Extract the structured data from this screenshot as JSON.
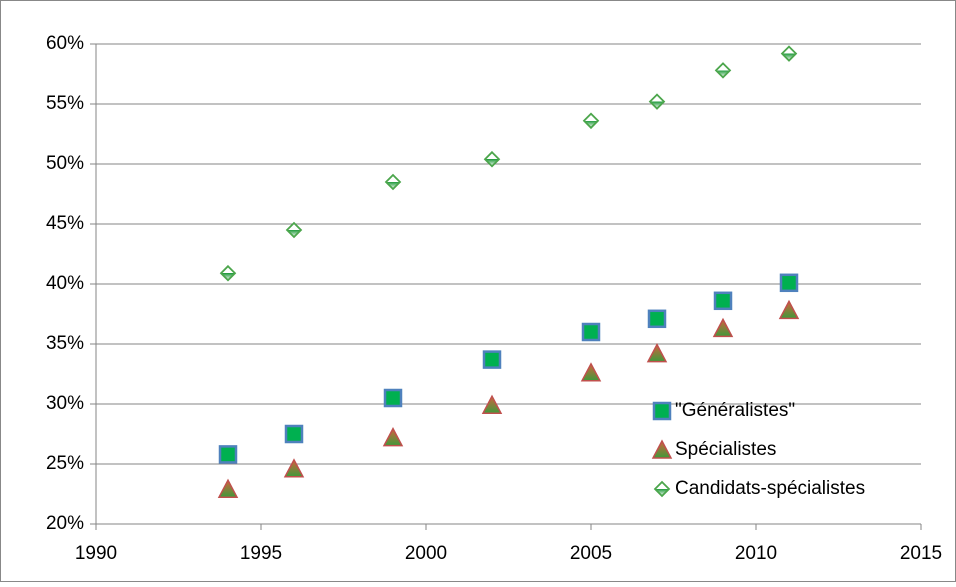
{
  "chart_data": {
    "type": "scatter",
    "x": [
      1994,
      1996,
      1999,
      2002,
      2005,
      2007,
      2009,
      2011
    ],
    "series": [
      {
        "name": "\"Généralistes\"",
        "color": "#00b050",
        "marker": "square",
        "values": [
          25.8,
          27.5,
          30.5,
          33.7,
          36.0,
          37.1,
          38.6,
          40.1
        ]
      },
      {
        "name": "Spécialistes",
        "color": "#c0504d",
        "marker": "triangle",
        "values": [
          22.9,
          24.6,
          27.2,
          29.9,
          32.6,
          34.2,
          36.3,
          37.8
        ]
      },
      {
        "name": "Candidats-spécialistes",
        "color": "#9bbb59",
        "marker": "diamond",
        "values": [
          40.9,
          44.5,
          48.5,
          50.4,
          53.6,
          55.2,
          57.8,
          59.2
        ]
      }
    ],
    "xlim": [
      1990,
      2015
    ],
    "xticks": [
      1990,
      1995,
      2000,
      2005,
      2010,
      2015
    ],
    "ylim": [
      20,
      60
    ],
    "yticks": [
      {
        "value": 20,
        "label": "20%"
      },
      {
        "value": 25,
        "label": "25%"
      },
      {
        "value": 30,
        "label": "30%"
      },
      {
        "value": 35,
        "label": "35%"
      },
      {
        "value": 40,
        "label": "40%"
      },
      {
        "value": 45,
        "label": "45%"
      },
      {
        "value": 50,
        "label": "50%"
      },
      {
        "value": 55,
        "label": "55%"
      },
      {
        "value": 60,
        "label": "60%"
      }
    ],
    "grid": true
  }
}
